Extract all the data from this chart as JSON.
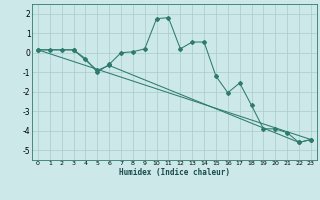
{
  "xlabel": "Humidex (Indice chaleur)",
  "bg_color": "#cce8e8",
  "grid_color": "#aacccc",
  "line_color": "#2e7b6e",
  "xlim": [
    -0.5,
    23.5
  ],
  "ylim": [
    -5.5,
    2.5
  ],
  "yticks": [
    2,
    1,
    0,
    -1,
    -2,
    -3,
    -4,
    -5
  ],
  "xticks": [
    0,
    1,
    2,
    3,
    4,
    5,
    6,
    7,
    8,
    9,
    10,
    11,
    12,
    13,
    14,
    15,
    16,
    17,
    18,
    19,
    20,
    21,
    22,
    23
  ],
  "series0_x": [
    0,
    1,
    2,
    3,
    4,
    5,
    6,
    7,
    8,
    9,
    10,
    11,
    12,
    13,
    14,
    15,
    16,
    17,
    18,
    19,
    20,
    21,
    22,
    23
  ],
  "series0_y": [
    0.15,
    0.15,
    0.15,
    0.15,
    -0.3,
    -1.0,
    -0.6,
    0.0,
    0.05,
    0.2,
    1.75,
    1.8,
    0.2,
    0.55,
    0.55,
    -1.2,
    -2.05,
    -1.55,
    -2.7,
    -3.9,
    -3.9,
    -4.1,
    -4.6,
    -4.45
  ],
  "series1_x": [
    0,
    3,
    5,
    6,
    22,
    23
  ],
  "series1_y": [
    0.15,
    0.15,
    -0.9,
    -0.65,
    -4.6,
    -4.45
  ],
  "series2_x": [
    0,
    23
  ],
  "series2_y": [
    0.15,
    -4.45
  ]
}
